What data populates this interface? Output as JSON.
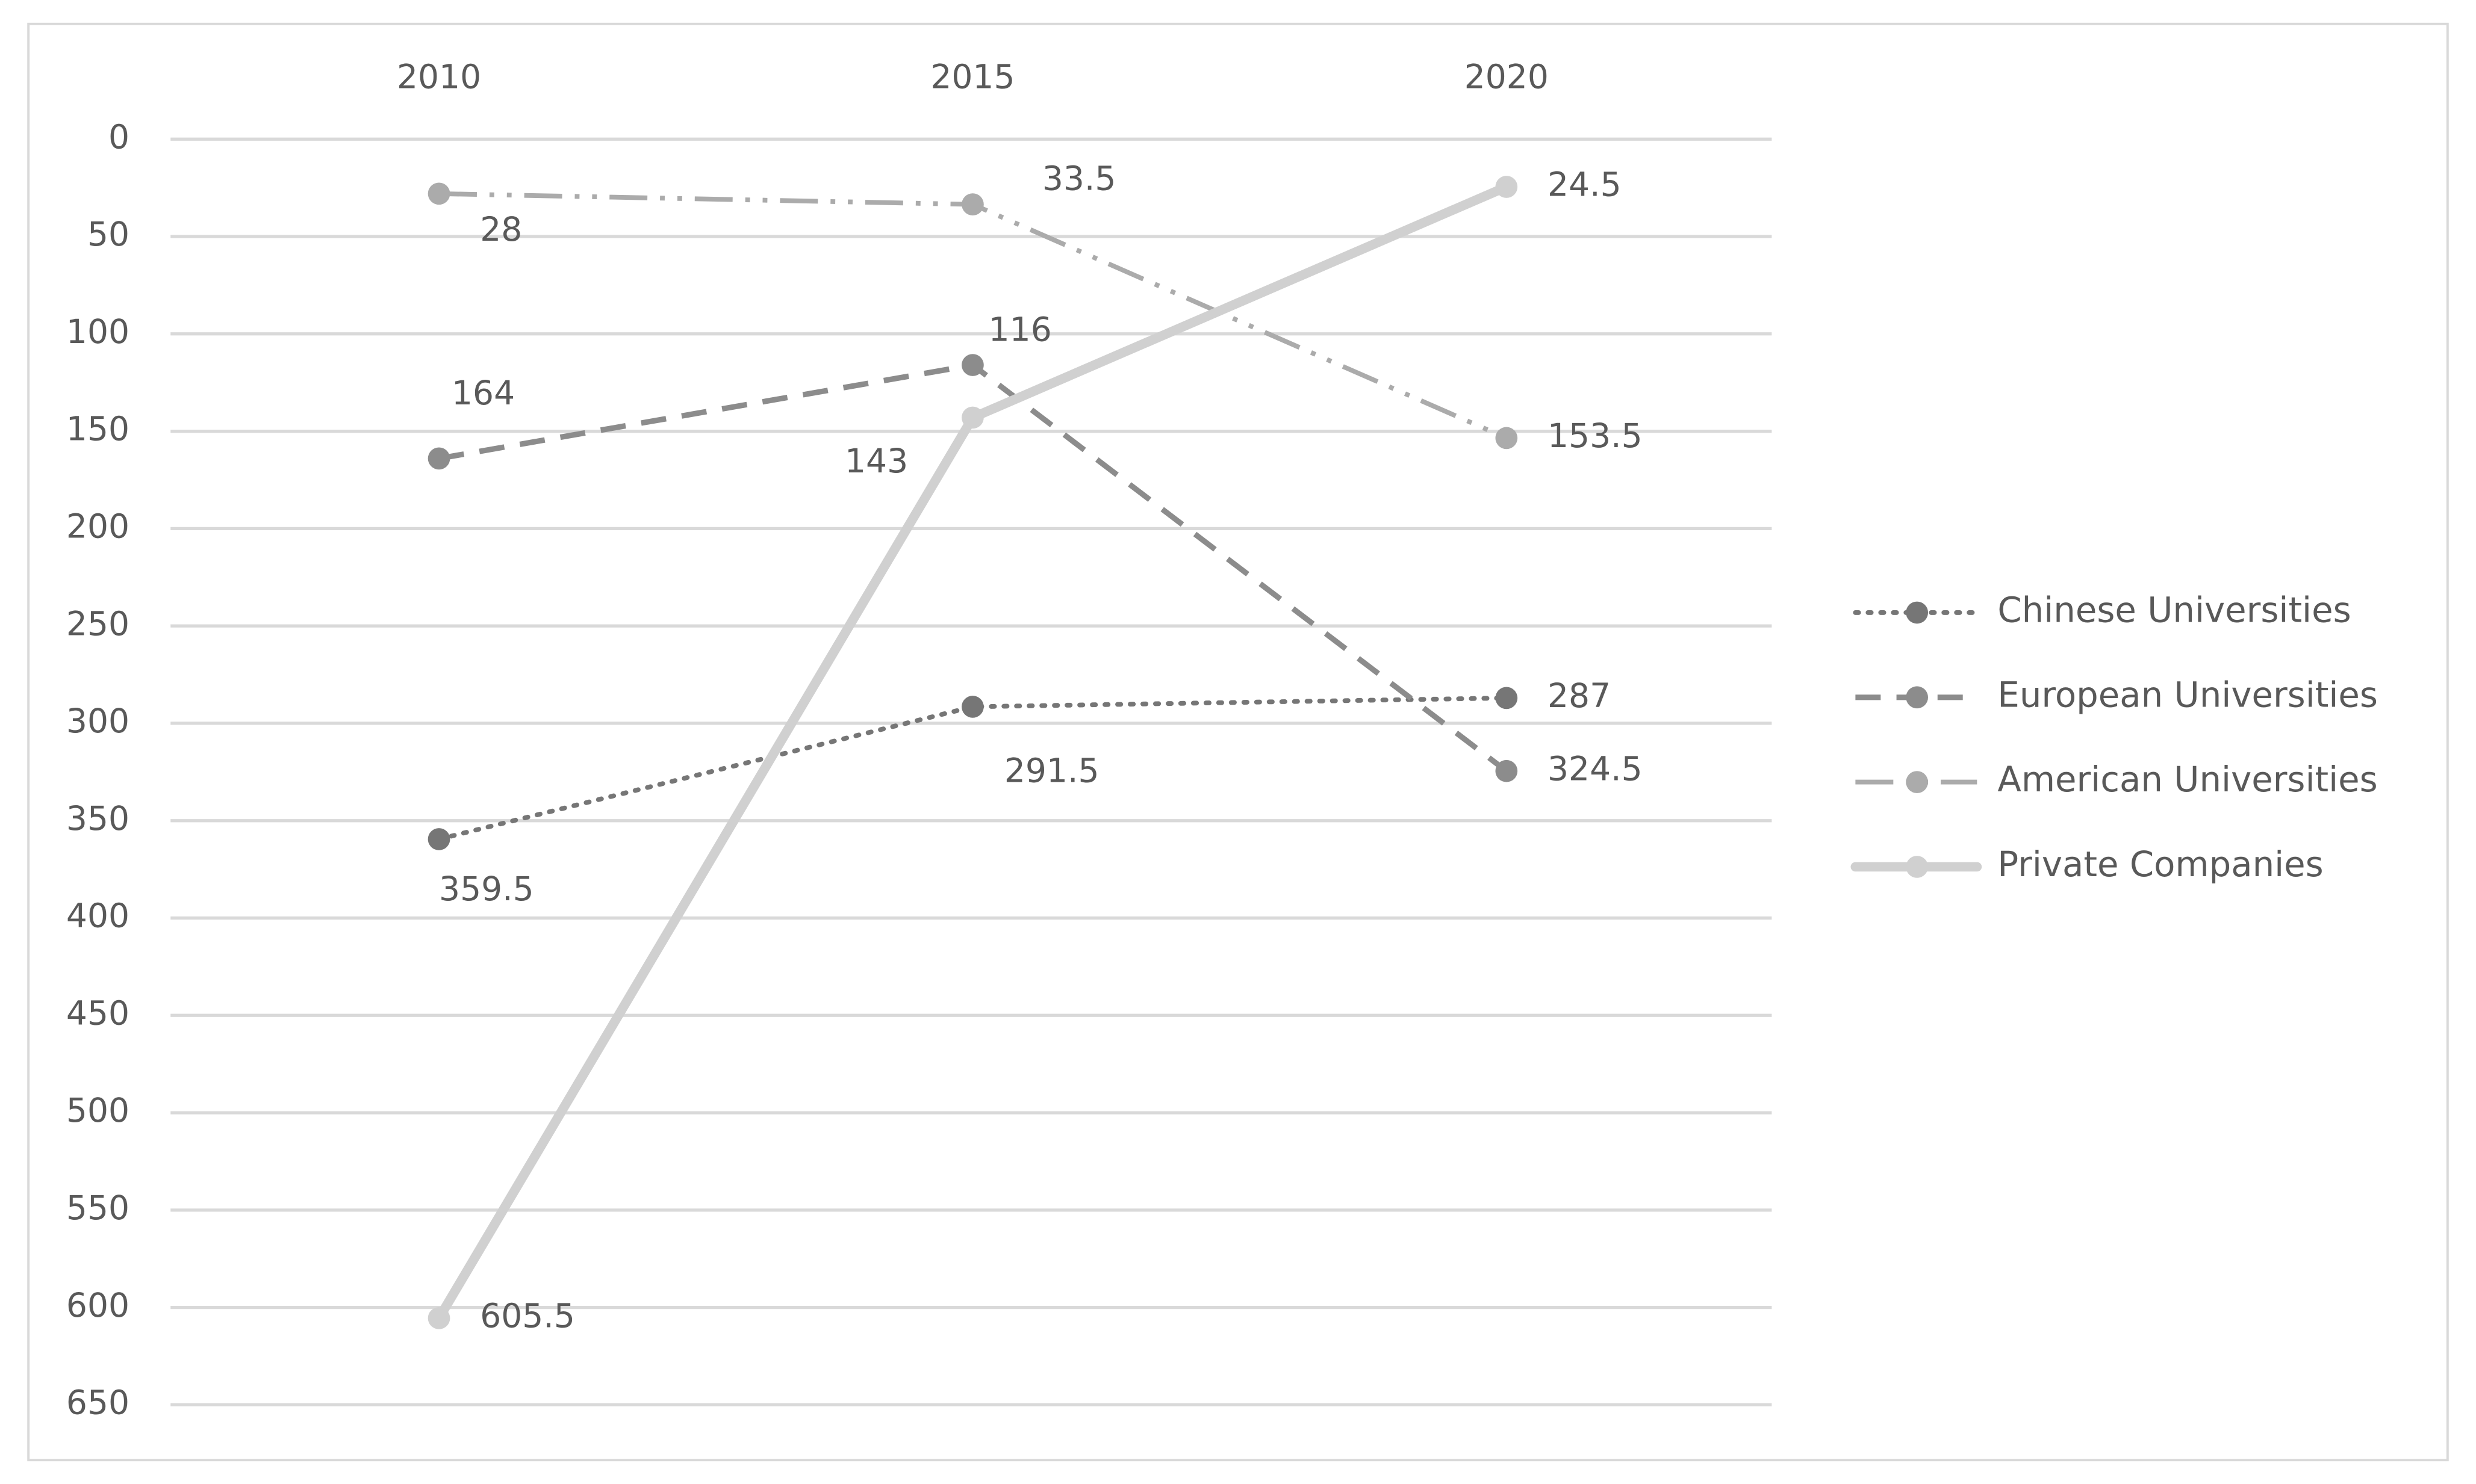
{
  "chart_data": {
    "type": "line",
    "categories": [
      "2010",
      "2015",
      "2020"
    ],
    "ylim": [
      0,
      650
    ],
    "y_inverted": true,
    "yticks": [
      0,
      50,
      100,
      150,
      200,
      250,
      300,
      350,
      400,
      450,
      500,
      550,
      600,
      650
    ],
    "grid": true,
    "legend": "right",
    "series": [
      {
        "name": "Chinese Universities",
        "color": "#767676",
        "line_style": "dotted",
        "values": [
          359.5,
          291.5,
          287
        ]
      },
      {
        "name": "European Universities",
        "color": "#8c8c8c",
        "line_style": "dashed",
        "values": [
          164,
          116,
          324.5
        ]
      },
      {
        "name": "American Universities",
        "color": "#ababab",
        "line_style": "dash-dot",
        "values": [
          28,
          33.5,
          153.5
        ]
      },
      {
        "name": "Private Companies",
        "color": "#d0d0d0",
        "line_style": "solid",
        "values": [
          605.5,
          143,
          24.5
        ]
      }
    ]
  }
}
